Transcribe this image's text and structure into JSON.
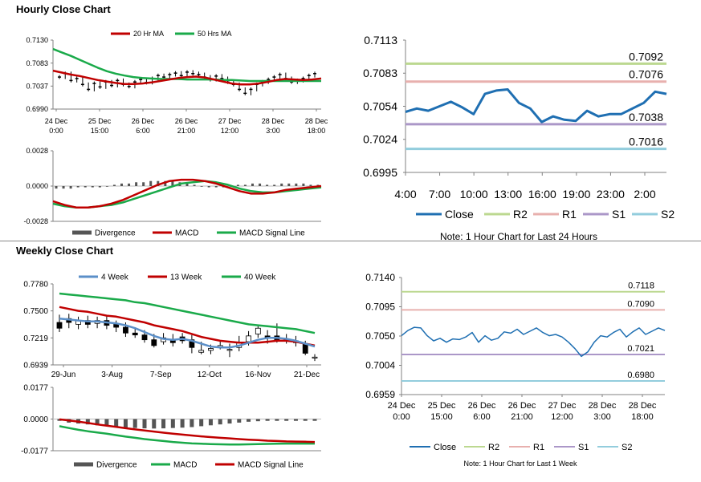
{
  "hourly_title": "Hourly Close Chart",
  "weekly_title": "Weekly Close Chart",
  "colors": {
    "ma_short": "#c00000",
    "ma_long": "#1aaa4a",
    "close": "#1f6fb2",
    "ma4": "#5b8fc8",
    "r2": "#bcd890",
    "r1": "#e8b0ae",
    "s1": "#ab97c8",
    "s2": "#93cddd",
    "divergence": "#555555",
    "candle": "#000000"
  },
  "chart_data": [
    {
      "type": "candlestick",
      "panel": "hourly-price",
      "legend": [
        "20 Hr MA",
        "50 Hrs MA"
      ],
      "ylim": [
        0.699,
        0.713
      ],
      "yticks": [
        "0.7130",
        "0.7083",
        "0.7037",
        "0.6990"
      ],
      "xticks": [
        [
          "24 Dec",
          "0:00"
        ],
        [
          "25 Dec",
          "15:00"
        ],
        [
          "26 Dec",
          "6:00"
        ],
        [
          "26 Dec",
          "21:00"
        ],
        [
          "27 Dec",
          "12:00"
        ],
        [
          "28 Dec",
          "3:00"
        ],
        [
          "28 Dec",
          "18:00"
        ]
      ],
      "close": [
        0.7055,
        0.7062,
        0.7048,
        0.7052,
        0.704,
        0.703,
        0.7042,
        0.7035,
        0.7045,
        0.7038,
        0.7048,
        0.704,
        0.7036,
        0.7045,
        0.705,
        0.7044,
        0.7052,
        0.7058,
        0.7055,
        0.706,
        0.7063,
        0.7058,
        0.7065,
        0.7062,
        0.706,
        0.7055,
        0.705,
        0.7057,
        0.7052,
        0.7045,
        0.704,
        0.703,
        0.7022,
        0.703,
        0.704,
        0.7045,
        0.705,
        0.7055,
        0.706,
        0.7052,
        0.7045,
        0.7048,
        0.7052,
        0.7058,
        0.7062
      ],
      "series": [
        {
          "name": "20 Hr MA",
          "values": [
            0.7068,
            0.7064,
            0.706,
            0.7057,
            0.7053,
            0.7049,
            0.7046,
            0.7043,
            0.7041,
            0.7041,
            0.7042,
            0.7044,
            0.7047,
            0.705,
            0.7053,
            0.7055,
            0.7056,
            0.7054,
            0.705,
            0.7046,
            0.7042,
            0.704,
            0.704,
            0.7042,
            0.7045,
            0.7049,
            0.7051,
            0.705,
            0.7049,
            0.705,
            0.7052
          ]
        },
        {
          "name": "50 Hrs MA",
          "values": [
            0.7112,
            0.7105,
            0.7098,
            0.709,
            0.7082,
            0.7074,
            0.7067,
            0.7062,
            0.7058,
            0.7055,
            0.7053,
            0.7052,
            0.7051,
            0.7051,
            0.7051,
            0.705,
            0.705,
            0.705,
            0.705,
            0.7049,
            0.7049,
            0.7048,
            0.7047,
            0.7047,
            0.7047,
            0.7047,
            0.7047,
            0.7047,
            0.7047,
            0.7047,
            0.7047
          ]
        }
      ]
    },
    {
      "type": "bar+line",
      "panel": "hourly-macd",
      "legend": [
        "Divergence",
        "MACD",
        "MACD Signal Line"
      ],
      "ylim": [
        -0.0028,
        0.0028
      ],
      "yticks": [
        "0.0028",
        "0.0000",
        "-0.0028"
      ],
      "divergence": [
        -0.0002,
        -0.0002,
        -0.0002,
        -0.0001,
        -0.0001,
        -0.0001,
        -0.0001,
        0.0,
        0.0001,
        0.0002,
        0.0002,
        0.0003,
        0.0003,
        0.0004,
        0.0004,
        0.0004,
        0.0004,
        0.0003,
        0.0002,
        0.0001,
        0.0,
        -0.0001,
        -0.0001,
        -0.0001,
        0.0,
        0.0001,
        0.0001,
        0.0002,
        0.0002,
        0.0001,
        0.0001,
        0.0002,
        0.0002,
        0.0002,
        0.0002,
        0.0001,
        0.0001
      ],
      "series": [
        {
          "name": "MACD",
          "values": [
            -0.0012,
            -0.0015,
            -0.0017,
            -0.0017,
            -0.0016,
            -0.0014,
            -0.0011,
            -0.0007,
            -0.0003,
            0.0001,
            0.0004,
            0.0005,
            0.0005,
            0.0004,
            0.0002,
            -0.0001,
            -0.0004,
            -0.0006,
            -0.0006,
            -0.0005,
            -0.0003,
            -0.0002,
            -0.0001,
            0.0
          ]
        },
        {
          "name": "MACD Signal Line",
          "values": [
            -0.0014,
            -0.0016,
            -0.0017,
            -0.0017,
            -0.0016,
            -0.0015,
            -0.0013,
            -0.001,
            -0.0007,
            -0.0004,
            -0.0001,
            0.0002,
            0.0003,
            0.0004,
            0.0003,
            0.0001,
            -0.0002,
            -0.0004,
            -0.0005,
            -0.0005,
            -0.0004,
            -0.0003,
            -0.0002,
            -0.0001
          ]
        }
      ]
    },
    {
      "type": "line",
      "panel": "hourly-24h",
      "ylim": [
        0.6995,
        0.7113
      ],
      "yticks": [
        "0.7113",
        "0.7083",
        "0.7054",
        "0.7024",
        "0.6995"
      ],
      "xticks": [
        "4:00",
        "7:00",
        "10:00",
        "13:00",
        "16:00",
        "19:00",
        "23:00",
        "2:00"
      ],
      "series": [
        {
          "name": "Close",
          "values": [
            0.7049,
            0.7052,
            0.705,
            0.7054,
            0.7058,
            0.7053,
            0.7047,
            0.7065,
            0.7068,
            0.7069,
            0.7057,
            0.7052,
            0.704,
            0.7045,
            0.7042,
            0.7041,
            0.705,
            0.7045,
            0.7047,
            0.7047,
            0.7052,
            0.7057,
            0.7067,
            0.7065
          ]
        }
      ],
      "levels": [
        {
          "name": "R2",
          "value": 0.7092,
          "label": "0.7092"
        },
        {
          "name": "R1",
          "value": 0.7076,
          "label": "0.7076"
        },
        {
          "name": "S1",
          "value": 0.7038,
          "label": "0.7038"
        },
        {
          "name": "S2",
          "value": 0.7016,
          "label": "0.7016"
        }
      ],
      "legend": [
        "Close",
        "R2",
        "R1",
        "S1",
        "S2"
      ],
      "note": "Note: 1 Hour Chart for Last 24 Hours"
    },
    {
      "type": "candlestick",
      "panel": "weekly-price",
      "legend": [
        "4 Week",
        "13 Week",
        "40 Week"
      ],
      "ylim": [
        0.6939,
        0.778
      ],
      "yticks": [
        "0.7780",
        "0.7500",
        "0.7219",
        "0.6939"
      ],
      "xticks": [
        "29-Jun",
        "3-Aug",
        "7-Sep",
        "12-Oct",
        "16-Nov",
        "21-Dec"
      ],
      "candles": [
        {
          "o": 0.738,
          "c": 0.732,
          "h": 0.746,
          "l": 0.728
        },
        {
          "o": 0.742,
          "c": 0.738,
          "h": 0.747,
          "l": 0.732
        },
        {
          "o": 0.736,
          "c": 0.74,
          "h": 0.744,
          "l": 0.731
        },
        {
          "o": 0.74,
          "c": 0.736,
          "h": 0.745,
          "l": 0.732
        },
        {
          "o": 0.737,
          "c": 0.74,
          "h": 0.744,
          "l": 0.732
        },
        {
          "o": 0.74,
          "c": 0.735,
          "h": 0.745,
          "l": 0.731
        },
        {
          "o": 0.736,
          "c": 0.733,
          "h": 0.74,
          "l": 0.728
        },
        {
          "o": 0.733,
          "c": 0.727,
          "h": 0.738,
          "l": 0.723
        },
        {
          "o": 0.727,
          "c": 0.725,
          "h": 0.733,
          "l": 0.722
        },
        {
          "o": 0.725,
          "c": 0.72,
          "h": 0.73,
          "l": 0.717
        },
        {
          "o": 0.72,
          "c": 0.714,
          "h": 0.726,
          "l": 0.712
        },
        {
          "o": 0.718,
          "c": 0.722,
          "h": 0.727,
          "l": 0.715
        },
        {
          "o": 0.72,
          "c": 0.717,
          "h": 0.726,
          "l": 0.713
        },
        {
          "o": 0.723,
          "c": 0.719,
          "h": 0.727,
          "l": 0.716
        },
        {
          "o": 0.72,
          "c": 0.712,
          "h": 0.725,
          "l": 0.706
        },
        {
          "o": 0.707,
          "c": 0.709,
          "h": 0.718,
          "l": 0.705
        },
        {
          "o": 0.709,
          "c": 0.711,
          "h": 0.715,
          "l": 0.705
        },
        {
          "o": 0.712,
          "c": 0.714,
          "h": 0.719,
          "l": 0.71
        },
        {
          "o": 0.71,
          "c": 0.71,
          "h": 0.716,
          "l": 0.702
        },
        {
          "o": 0.712,
          "c": 0.717,
          "h": 0.724,
          "l": 0.708
        },
        {
          "o": 0.718,
          "c": 0.724,
          "h": 0.729,
          "l": 0.714
        },
        {
          "o": 0.726,
          "c": 0.732,
          "h": 0.734,
          "l": 0.722
        },
        {
          "o": 0.724,
          "c": 0.722,
          "h": 0.73,
          "l": 0.716
        },
        {
          "o": 0.724,
          "c": 0.72,
          "h": 0.737,
          "l": 0.717
        },
        {
          "o": 0.721,
          "c": 0.719,
          "h": 0.726,
          "l": 0.716
        },
        {
          "o": 0.719,
          "c": 0.717,
          "h": 0.724,
          "l": 0.713
        },
        {
          "o": 0.716,
          "c": 0.706,
          "h": 0.719,
          "l": 0.704
        },
        {
          "o": 0.702,
          "c": 0.702,
          "h": 0.705,
          "l": 0.698
        }
      ],
      "series": [
        {
          "name": "4 Week",
          "values": [
            0.742,
            0.741,
            0.74,
            0.739,
            0.739,
            0.738,
            0.737,
            0.735,
            0.732,
            0.728,
            0.724,
            0.721,
            0.72,
            0.721,
            0.719,
            0.716,
            0.713,
            0.712,
            0.712,
            0.714,
            0.717,
            0.72,
            0.722,
            0.722,
            0.721,
            0.719,
            0.716,
            0.713
          ]
        },
        {
          "name": "13 Week",
          "values": [
            0.754,
            0.752,
            0.75,
            0.749,
            0.747,
            0.745,
            0.744,
            0.742,
            0.74,
            0.738,
            0.735,
            0.733,
            0.731,
            0.729,
            0.726,
            0.723,
            0.721,
            0.719,
            0.718,
            0.717,
            0.717,
            0.717,
            0.718,
            0.719,
            0.719,
            0.718,
            0.716,
            0.714
          ]
        },
        {
          "name": "40 Week",
          "values": [
            0.768,
            0.767,
            0.766,
            0.765,
            0.764,
            0.763,
            0.762,
            0.761,
            0.759,
            0.758,
            0.756,
            0.754,
            0.752,
            0.75,
            0.748,
            0.746,
            0.744,
            0.742,
            0.74,
            0.738,
            0.736,
            0.735,
            0.734,
            0.733,
            0.732,
            0.731,
            0.729,
            0.727
          ]
        }
      ]
    },
    {
      "type": "bar+line",
      "panel": "weekly-macd",
      "legend": [
        "Divergence",
        "MACD",
        "MACD Signal Line"
      ],
      "ylim": [
        -0.0177,
        0.0177
      ],
      "yticks": [
        "0.0177",
        "0.0000",
        "-0.0177"
      ],
      "divergence": [
        -0.001,
        -0.002,
        -0.0025,
        -0.003,
        -0.0035,
        -0.004,
        -0.0045,
        -0.0048,
        -0.005,
        -0.0052,
        -0.0053,
        -0.0052,
        -0.005,
        -0.0048,
        -0.0045,
        -0.004,
        -0.0035,
        -0.003,
        -0.0025,
        -0.002,
        -0.0015,
        -0.0012,
        -0.001,
        -0.001,
        -0.001,
        -0.001,
        -0.001,
        -0.001
      ],
      "series": [
        {
          "name": "MACD",
          "values": [
            -0.004,
            -0.005,
            -0.006,
            -0.0068,
            -0.0075,
            -0.0082,
            -0.009,
            -0.0098,
            -0.0105,
            -0.0112,
            -0.0118,
            -0.0123,
            -0.0128,
            -0.0132,
            -0.0136,
            -0.0138,
            -0.014,
            -0.0141,
            -0.0142,
            -0.0142,
            -0.0141,
            -0.014,
            -0.0139,
            -0.0138,
            -0.0137,
            -0.0137,
            -0.0137,
            -0.0137
          ]
        },
        {
          "name": "MACD Signal Line",
          "values": [
            -0.0002,
            -0.0008,
            -0.0015,
            -0.0022,
            -0.003,
            -0.0037,
            -0.0044,
            -0.0051,
            -0.0058,
            -0.0064,
            -0.007,
            -0.0076,
            -0.0082,
            -0.0087,
            -0.0092,
            -0.0097,
            -0.0101,
            -0.0105,
            -0.0108,
            -0.0112,
            -0.0115,
            -0.0118,
            -0.0121,
            -0.0123,
            -0.0125,
            -0.0126,
            -0.0127,
            -0.0128
          ]
        }
      ]
    },
    {
      "type": "line",
      "panel": "weekly-1w",
      "ylim": [
        0.6959,
        0.714
      ],
      "yticks": [
        "0.7140",
        "0.7095",
        "0.7050",
        "0.7004",
        "0.6959"
      ],
      "xticks": [
        [
          "24 Dec",
          "0:00"
        ],
        [
          "25 Dec",
          "15:00"
        ],
        [
          "26 Dec",
          "6:00"
        ],
        [
          "26 Dec",
          "21:00"
        ],
        [
          "27 Dec",
          "12:00"
        ],
        [
          "28 Dec",
          "3:00"
        ],
        [
          "28 Dec",
          "18:00"
        ]
      ],
      "series": [
        {
          "name": "Close",
          "values": [
            0.705,
            0.7058,
            0.7063,
            0.7062,
            0.705,
            0.7042,
            0.7046,
            0.704,
            0.7045,
            0.7044,
            0.7048,
            0.7055,
            0.704,
            0.705,
            0.7043,
            0.7046,
            0.7056,
            0.7054,
            0.706,
            0.7052,
            0.7057,
            0.7062,
            0.7055,
            0.705,
            0.7052,
            0.7048,
            0.704,
            0.703,
            0.7018,
            0.7025,
            0.704,
            0.705,
            0.7048,
            0.7055,
            0.706,
            0.7048,
            0.7056,
            0.7062,
            0.7052,
            0.7057,
            0.7062,
            0.7058
          ]
        }
      ],
      "levels": [
        {
          "name": "R2",
          "value": 0.7118,
          "label": "0.7118"
        },
        {
          "name": "R1",
          "value": 0.709,
          "label": "0.7090"
        },
        {
          "name": "S1",
          "value": 0.7021,
          "label": "0.7021"
        },
        {
          "name": "S2",
          "value": 0.698,
          "label": "0.6980"
        }
      ],
      "legend": [
        "Close",
        "R2",
        "R1",
        "S1",
        "S2"
      ],
      "note": "Note: 1 Hour Chart for Last 1 Week"
    }
  ]
}
